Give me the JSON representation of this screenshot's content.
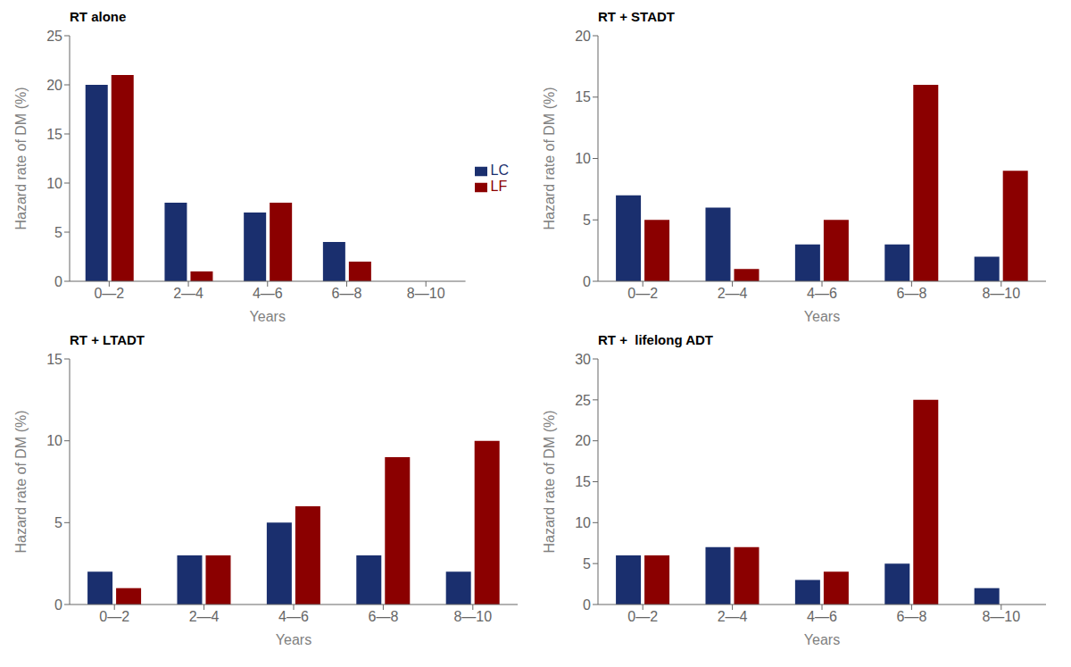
{
  "chart_data": [
    {
      "type": "bar",
      "title": "RT alone",
      "xlabel": "Years",
      "ylabel": "Hazard rate of DM (%)",
      "categories": [
        "0—2",
        "2—4",
        "4—6",
        "6—8",
        "8—10"
      ],
      "series": [
        {
          "name": "LC",
          "color": "#1a2f6e",
          "values": [
            20,
            8,
            7,
            4,
            0
          ]
        },
        {
          "name": "LF",
          "color": "#8b0000",
          "values": [
            21,
            1,
            8,
            2,
            0
          ]
        }
      ],
      "ylim": [
        0,
        25
      ],
      "yticks": [
        0,
        5,
        10,
        15,
        20,
        25
      ],
      "grid": false,
      "legend": "right"
    },
    {
      "type": "bar",
      "title": "RT + STADT",
      "xlabel": "Years",
      "ylabel": "Hazard rate of DM (%)",
      "categories": [
        "0—2",
        "2—4",
        "4—6",
        "6—8",
        "8—10"
      ],
      "series": [
        {
          "name": "LC",
          "color": "#1a2f6e",
          "values": [
            7,
            6,
            3,
            3,
            2
          ]
        },
        {
          "name": "LF",
          "color": "#8b0000",
          "values": [
            5,
            1,
            5,
            16,
            9
          ]
        }
      ],
      "ylim": [
        0,
        20
      ],
      "yticks": [
        0,
        5,
        10,
        15,
        20
      ],
      "grid": false
    },
    {
      "type": "bar",
      "title": "RT + LTADT",
      "xlabel": "Years",
      "ylabel": "Hazard rate of DM (%)",
      "categories": [
        "0—2",
        "2—4",
        "4—6",
        "6—8",
        "8—10"
      ],
      "series": [
        {
          "name": "LC",
          "color": "#1a2f6e",
          "values": [
            2,
            3,
            5,
            3,
            2
          ]
        },
        {
          "name": "LF",
          "color": "#8b0000",
          "values": [
            1,
            3,
            6,
            9,
            10
          ]
        }
      ],
      "ylim": [
        0,
        15
      ],
      "yticks": [
        0,
        5,
        10,
        15
      ],
      "grid": false
    },
    {
      "type": "bar",
      "title": "RT +  lifelong ADT",
      "xlabel": "Years",
      "ylabel": "Hazard rate of DM (%)",
      "categories": [
        "0—2",
        "2—4",
        "4—6",
        "6—8",
        "8—10"
      ],
      "series": [
        {
          "name": "LC",
          "color": "#1a2f6e",
          "values": [
            6,
            7,
            3,
            5,
            2
          ]
        },
        {
          "name": "LF",
          "color": "#8b0000",
          "values": [
            6,
            7,
            4,
            25,
            0
          ]
        }
      ],
      "ylim": [
        0,
        30
      ],
      "yticks": [
        0,
        5,
        10,
        15,
        20,
        25,
        30
      ],
      "grid": false
    }
  ]
}
